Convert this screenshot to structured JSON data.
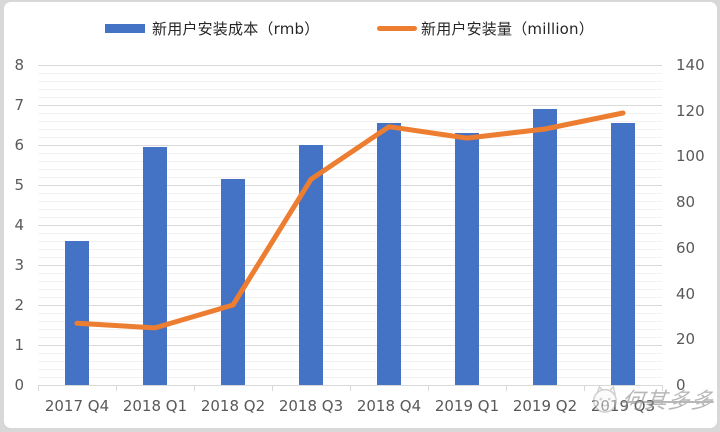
{
  "legend": {
    "cost_label": "新用户安装成本（rmb）",
    "installs_label": "新用户安装量（million）"
  },
  "watermark": {
    "text": "何其多多"
  },
  "colors": {
    "bar": "#4472C4",
    "line": "#ED7D31",
    "grid_major": "#d9d9d9",
    "grid_minor": "#f2f2f2",
    "axis_text": "#595959",
    "legend_text": "#262626"
  },
  "chart_data": {
    "type": "bar",
    "subtype": "combo-bar-line",
    "categories": [
      "2017 Q4",
      "2018 Q1",
      "2018 Q2",
      "2018 Q3",
      "2018 Q4",
      "2019 Q1",
      "2019 Q2",
      "2019 Q3"
    ],
    "series": [
      {
        "name": "新用户安装成本（rmb）",
        "type": "bar",
        "axis": "left",
        "color": "#4472C4",
        "values": [
          3.6,
          5.95,
          5.15,
          6.0,
          6.55,
          6.3,
          6.9,
          6.55
        ]
      },
      {
        "name": "新用户安装量（million）",
        "type": "line",
        "axis": "right",
        "color": "#ED7D31",
        "values": [
          27,
          25,
          35,
          90,
          113,
          108,
          112,
          119
        ]
      }
    ],
    "left_axis": {
      "label": "",
      "min": 0,
      "max": 8,
      "step": 1,
      "ticks": [
        "0",
        "1",
        "2",
        "3",
        "4",
        "5",
        "6",
        "7",
        "8"
      ]
    },
    "right_axis": {
      "label": "",
      "min": 0,
      "max": 140,
      "step": 20,
      "ticks": [
        "0",
        "20",
        "40",
        "60",
        "80",
        "100",
        "120",
        "140"
      ]
    },
    "xlabel": "",
    "ylabel": "",
    "title": "",
    "grid": {
      "major": true,
      "minor": true,
      "minor_divisions_per_major": 5
    },
    "legend_position": "top"
  }
}
